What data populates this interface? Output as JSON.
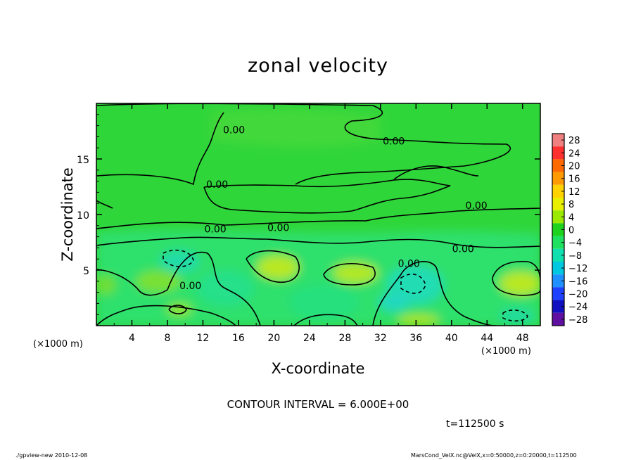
{
  "chart_data": {
    "type": "heatmap",
    "title": "zonal velocity",
    "xlabel": "X-coordinate",
    "ylabel": "Z-coordinate",
    "x_unit_left": "(×1000 m)",
    "x_unit_right": "(×1000 m)",
    "xlim": [
      0,
      50
    ],
    "ylim": [
      0,
      20
    ],
    "x_ticks": [
      4,
      8,
      12,
      16,
      20,
      24,
      28,
      32,
      36,
      40,
      44,
      48
    ],
    "x_tick_labels": [
      "4",
      "8",
      "12",
      "16",
      "20",
      "24",
      "28",
      "32",
      "36",
      "40",
      "44",
      "48"
    ],
    "y_ticks": [
      5,
      10,
      15
    ],
    "y_tick_labels": [
      "5",
      "10",
      "15"
    ],
    "colorbar": {
      "levels": [
        28,
        24,
        20,
        16,
        12,
        8,
        4,
        0,
        -4,
        -8,
        -12,
        -16,
        -20,
        -24,
        -28
      ],
      "labels": [
        "28",
        "24",
        "20",
        "16",
        "12",
        "8",
        "4",
        "0",
        "−4",
        "−8",
        "−12",
        "−16",
        "−20",
        "−24",
        "−28"
      ],
      "colors": [
        "#f08080",
        "#ff3030",
        "#ff6a00",
        "#ff9a00",
        "#ffd200",
        "#e8f000",
        "#9be800",
        "#1ed21e",
        "#20e060",
        "#10e0b0",
        "#00c8e0",
        "#1e90ff",
        "#1e40ff",
        "#1010c0",
        "#6010a0"
      ]
    },
    "contour_labels": [
      {
        "text": "0.00",
        "x": 15.5,
        "z": 17.3
      },
      {
        "text": "0.00",
        "x": 33.5,
        "z": 16.3
      },
      {
        "text": "0.00",
        "x": 13.6,
        "z": 12.4
      },
      {
        "text": "0.00",
        "x": 42.8,
        "z": 10.5
      },
      {
        "text": "0.00",
        "x": 13.4,
        "z": 8.4
      },
      {
        "text": "0.00",
        "x": 20.5,
        "z": 8.5
      },
      {
        "text": "0.00",
        "x": 41.3,
        "z": 6.6
      },
      {
        "text": "0.00",
        "x": 35.2,
        "z": 5.3
      },
      {
        "text": "0.00",
        "x": 10.6,
        "z": 3.3
      }
    ]
  },
  "contour_interval_text": "CONTOUR INTERVAL = 6.000E+00",
  "time_text": "t=112500 s",
  "footer": {
    "left": "./gpview-new  2010-12-08",
    "right": "MarsCond_VelX.nc@VelX,x=0:50000,z=0:20000,t=112500"
  }
}
